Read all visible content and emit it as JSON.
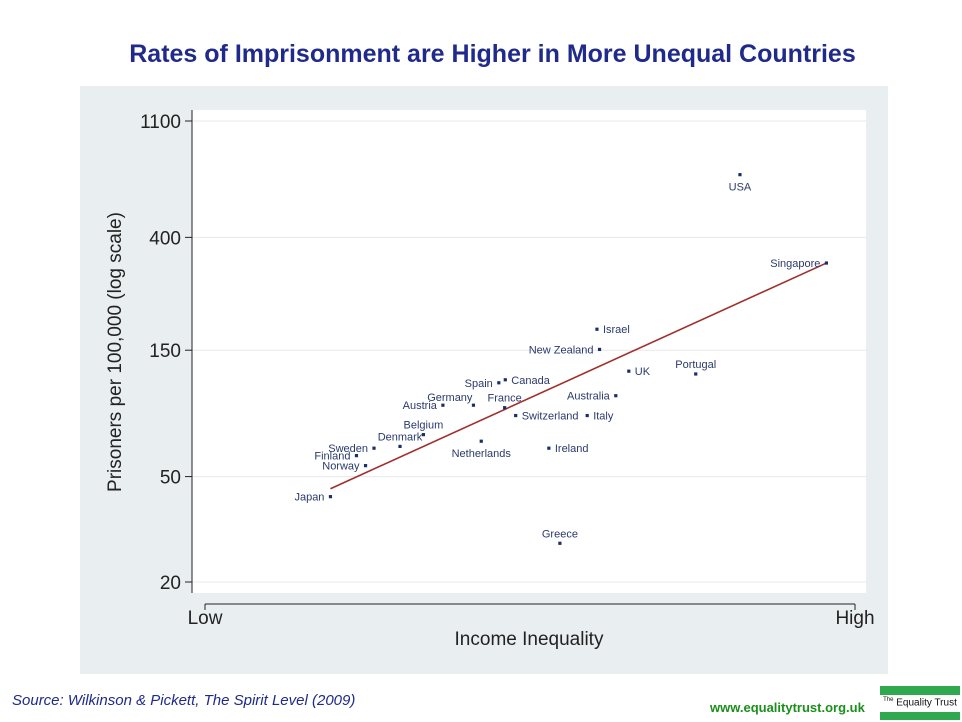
{
  "slide": {
    "title": "Rates of Imprisonment are Higher in More Unequal Countries",
    "source": "Source: Wilkinson & Pickett, The Spirit Level (2009)",
    "website": "www.equalitytrust.org.uk",
    "logo_small": "The",
    "logo_main": "Equality Trust",
    "colors": {
      "title": "#1f2a8a",
      "point": "#1a2f6a",
      "label": "#2b3a6b",
      "trendline": "#a0302c",
      "website": "#1a8f1a",
      "logo": "#2fa84f"
    }
  },
  "chart_data": {
    "type": "scatter",
    "title": "Rates of Imprisonment are Higher in More Unequal Countries",
    "xlabel": "Income Inequality",
    "ylabel": "Prisoners per 100,000 (log scale)",
    "y_scale": "log",
    "xlim": [
      0,
      100
    ],
    "ylim": [
      20,
      1100
    ],
    "x_ticks": [
      {
        "value": 0,
        "label": "Low"
      },
      {
        "value": 100,
        "label": "High"
      }
    ],
    "y_ticks": [
      20,
      50,
      150,
      400,
      1100
    ],
    "grid": true,
    "points": [
      {
        "name": "USA",
        "x": 82.3,
        "y": 690,
        "label_pos": "below"
      },
      {
        "name": "Singapore",
        "x": 95.6,
        "y": 320,
        "label_pos": "left"
      },
      {
        "name": "Israel",
        "x": 60.3,
        "y": 180,
        "label_pos": "right"
      },
      {
        "name": "New Zealand",
        "x": 60.7,
        "y": 151,
        "label_pos": "left"
      },
      {
        "name": "UK",
        "x": 65.2,
        "y": 125,
        "label_pos": "right"
      },
      {
        "name": "Portugal",
        "x": 75.5,
        "y": 122,
        "label_pos": "above"
      },
      {
        "name": "Canada",
        "x": 46.2,
        "y": 116,
        "label_pos": "right"
      },
      {
        "name": "Spain",
        "x": 45.2,
        "y": 113,
        "label_pos": "left"
      },
      {
        "name": "Australia",
        "x": 63.2,
        "y": 101,
        "label_pos": "left"
      },
      {
        "name": "Germany",
        "x": 41.3,
        "y": 93,
        "label_pos": "above-left"
      },
      {
        "name": "Austria",
        "x": 36.6,
        "y": 93,
        "label_pos": "left"
      },
      {
        "name": "France",
        "x": 46.1,
        "y": 91,
        "label_pos": "above"
      },
      {
        "name": "Switzerland",
        "x": 47.8,
        "y": 85,
        "label_pos": "right"
      },
      {
        "name": "Italy",
        "x": 58.8,
        "y": 85,
        "label_pos": "right"
      },
      {
        "name": "Belgium",
        "x": 33.6,
        "y": 72,
        "label_pos": "above"
      },
      {
        "name": "Denmark",
        "x": 30.0,
        "y": 65,
        "label_pos": "above"
      },
      {
        "name": "Netherlands",
        "x": 42.5,
        "y": 68,
        "label_pos": "below"
      },
      {
        "name": "Ireland",
        "x": 52.9,
        "y": 64,
        "label_pos": "right"
      },
      {
        "name": "Sweden",
        "x": 26.0,
        "y": 64,
        "label_pos": "left"
      },
      {
        "name": "Finland",
        "x": 23.3,
        "y": 60,
        "label_pos": "left"
      },
      {
        "name": "Norway",
        "x": 24.7,
        "y": 55,
        "label_pos": "left"
      },
      {
        "name": "Japan",
        "x": 19.3,
        "y": 42,
        "label_pos": "left"
      },
      {
        "name": "Greece",
        "x": 54.6,
        "y": 28,
        "label_pos": "above"
      }
    ],
    "trendline": {
      "x": [
        19.3,
        95.6
      ],
      "y": [
        45,
        320
      ]
    }
  }
}
